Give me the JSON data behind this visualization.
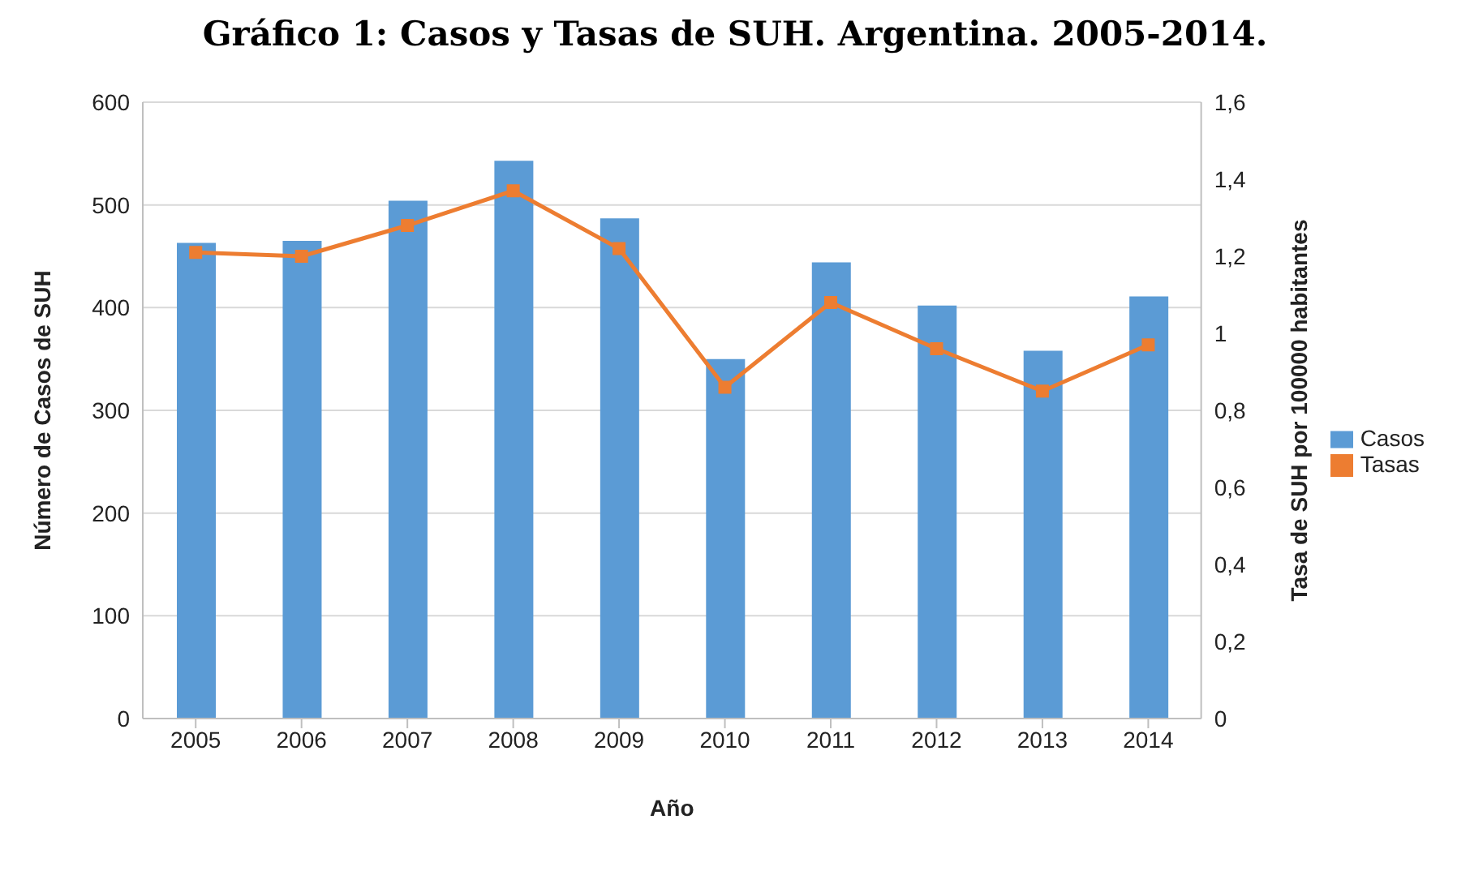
{
  "chart_data": {
    "type": "bar",
    "title": "Gráfico 1: Casos y Tasas de SUH. Argentina. 2005-2014.",
    "xlabel": "Año",
    "ylabel": "Número de Casos de SUH",
    "y2label": "Tasa de SUH por 100000 habitantes",
    "categories": [
      "2005",
      "2006",
      "2007",
      "2008",
      "2009",
      "2010",
      "2011",
      "2012",
      "2013",
      "2014"
    ],
    "series": [
      {
        "name": "Casos",
        "color": "#5b9bd5",
        "values": [
          463,
          465,
          504,
          543,
          487,
          350,
          444,
          402,
          358,
          411
        ]
      },
      {
        "name": "Tasas",
        "type": "line",
        "axis": "y2",
        "color": "#ed7d31",
        "marker": "square",
        "values": [
          1.21,
          1.2,
          1.28,
          1.37,
          1.22,
          0.86,
          1.08,
          0.96,
          0.85,
          0.97
        ]
      }
    ],
    "ylim": [
      0,
      600
    ],
    "yticks": [
      0,
      100,
      200,
      300,
      400,
      500,
      600
    ],
    "y2lim": [
      0,
      1.6
    ],
    "y2ticks": [
      0,
      {
        "value": 0.2,
        "label": "0,2"
      },
      {
        "value": 0.4,
        "label": "0,4"
      },
      {
        "value": 0.6,
        "label": "0,6"
      },
      {
        "value": 0.8,
        "label": "0,8"
      },
      1,
      {
        "value": 1.2,
        "label": "1,2"
      },
      {
        "value": 1.4,
        "label": "1,4"
      },
      {
        "value": 1.6,
        "label": "1,6"
      }
    ],
    "grid": "y",
    "legend": "right"
  }
}
